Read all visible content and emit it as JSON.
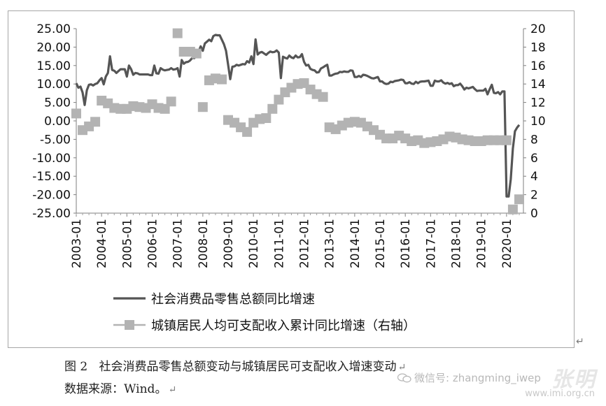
{
  "chart_data": {
    "type": "line",
    "title": "",
    "xlabel": "",
    "ylabel_left": "",
    "ylabel_right": "",
    "categories": [
      "2003-01",
      "2004-01",
      "2005-01",
      "2006-01",
      "2007-01",
      "2008-01",
      "2009-01",
      "2010-01",
      "2011-01",
      "2012-01",
      "2013-01",
      "2014-01",
      "2015-01",
      "2016-01",
      "2017-01",
      "2018-01",
      "2019-01",
      "2020-01"
    ],
    "x_range": [
      2003.0,
      2020.667
    ],
    "ylim_left": [
      -25,
      25
    ],
    "yticks_left": [
      "25.00",
      "20.00",
      "15.00",
      "10.00",
      "5.00",
      "0.00",
      "-5.00",
      "-10.00",
      "-15.00",
      "-20.00",
      "-25.00"
    ],
    "ylim_right": [
      0,
      20
    ],
    "yticks_right": [
      "20",
      "18",
      "16",
      "14",
      "12",
      "10",
      "8",
      "6",
      "4",
      "2",
      "0"
    ],
    "grid": false,
    "legend_position": "bottom",
    "series": [
      {
        "name": "社会消费品零售总额同比增速",
        "axis": "left",
        "style": "line",
        "color": "#555555",
        "points": [
          [
            2003.0,
            10.2
          ],
          [
            2003.083,
            9.0
          ],
          [
            2003.167,
            9.3
          ],
          [
            2003.25,
            7.7
          ],
          [
            2003.333,
            4.3
          ],
          [
            2003.417,
            8.3
          ],
          [
            2003.5,
            9.8
          ],
          [
            2003.583,
            9.9
          ],
          [
            2003.667,
            9.6
          ],
          [
            2003.75,
            10.0
          ],
          [
            2003.833,
            10.2
          ],
          [
            2003.917,
            11.0
          ],
          [
            2004.0,
            11.6
          ],
          [
            2004.083,
            9.9
          ],
          [
            2004.167,
            12.0
          ],
          [
            2004.25,
            13.0
          ],
          [
            2004.333,
            17.5
          ],
          [
            2004.417,
            13.8
          ],
          [
            2004.5,
            13.6
          ],
          [
            2004.583,
            13.0
          ],
          [
            2004.667,
            13.5
          ],
          [
            2004.75,
            14.0
          ],
          [
            2004.833,
            14.0
          ],
          [
            2004.917,
            14.0
          ],
          [
            2005.0,
            12.0
          ],
          [
            2005.083,
            15.0
          ],
          [
            2005.167,
            14.0
          ],
          [
            2005.25,
            12.5
          ],
          [
            2005.333,
            13.0
          ],
          [
            2005.417,
            12.9
          ],
          [
            2005.5,
            12.6
          ],
          [
            2005.583,
            12.6
          ],
          [
            2005.667,
            12.6
          ],
          [
            2005.75,
            12.6
          ],
          [
            2005.833,
            12.6
          ],
          [
            2005.917,
            12.4
          ],
          [
            2006.0,
            12.4
          ],
          [
            2006.083,
            15.0
          ],
          [
            2006.167,
            12.9
          ],
          [
            2006.25,
            12.8
          ],
          [
            2006.333,
            14.3
          ],
          [
            2006.417,
            13.9
          ],
          [
            2006.5,
            13.7
          ],
          [
            2006.583,
            13.8
          ],
          [
            2006.667,
            13.9
          ],
          [
            2006.75,
            14.3
          ],
          [
            2006.833,
            13.9
          ],
          [
            2006.917,
            14.0
          ],
          [
            2007.0,
            14.3
          ],
          [
            2007.083,
            12.0
          ],
          [
            2007.167,
            16.5
          ],
          [
            2007.25,
            15.5
          ],
          [
            2007.333,
            15.9
          ],
          [
            2007.417,
            16.0
          ],
          [
            2007.5,
            16.4
          ],
          [
            2007.583,
            17.1
          ],
          [
            2007.667,
            17.0
          ],
          [
            2007.75,
            18.1
          ],
          [
            2007.833,
            18.8
          ],
          [
            2007.917,
            20.2
          ],
          [
            2008.0,
            19.0
          ],
          [
            2008.083,
            21.0
          ],
          [
            2008.167,
            21.5
          ],
          [
            2008.25,
            22.0
          ],
          [
            2008.333,
            21.6
          ],
          [
            2008.417,
            23.0
          ],
          [
            2008.5,
            23.3
          ],
          [
            2008.583,
            23.2
          ],
          [
            2008.667,
            23.2
          ],
          [
            2008.75,
            22.0
          ],
          [
            2008.833,
            20.8
          ],
          [
            2008.917,
            19.0
          ],
          [
            2009.0,
            15.2
          ],
          [
            2009.083,
            11.3
          ],
          [
            2009.167,
            14.7
          ],
          [
            2009.25,
            14.8
          ],
          [
            2009.333,
            15.2
          ],
          [
            2009.417,
            15.0
          ],
          [
            2009.5,
            15.2
          ],
          [
            2009.583,
            15.4
          ],
          [
            2009.667,
            15.3
          ],
          [
            2009.75,
            16.2
          ],
          [
            2009.833,
            15.8
          ],
          [
            2009.917,
            17.5
          ],
          [
            2010.0,
            15.4
          ],
          [
            2010.083,
            22.1
          ],
          [
            2010.167,
            18.0
          ],
          [
            2010.25,
            18.5
          ],
          [
            2010.333,
            18.7
          ],
          [
            2010.417,
            18.3
          ],
          [
            2010.5,
            17.9
          ],
          [
            2010.583,
            18.4
          ],
          [
            2010.667,
            18.8
          ],
          [
            2010.75,
            18.6
          ],
          [
            2010.833,
            18.7
          ],
          [
            2010.917,
            19.1
          ],
          [
            2011.0,
            18.5
          ],
          [
            2011.083,
            11.6
          ],
          [
            2011.167,
            17.4
          ],
          [
            2011.25,
            17.1
          ],
          [
            2011.333,
            16.9
          ],
          [
            2011.417,
            17.7
          ],
          [
            2011.5,
            17.2
          ],
          [
            2011.583,
            17.0
          ],
          [
            2011.667,
            17.7
          ],
          [
            2011.75,
            17.2
          ],
          [
            2011.833,
            17.3
          ],
          [
            2011.917,
            18.1
          ],
          [
            2012.0,
            16.0
          ],
          [
            2012.083,
            15.0
          ],
          [
            2012.167,
            15.2
          ],
          [
            2012.25,
            14.1
          ],
          [
            2012.333,
            13.8
          ],
          [
            2012.417,
            13.7
          ],
          [
            2012.5,
            13.1
          ],
          [
            2012.583,
            13.2
          ],
          [
            2012.667,
            14.2
          ],
          [
            2012.75,
            14.5
          ],
          [
            2012.833,
            14.9
          ],
          [
            2012.917,
            15.2
          ],
          [
            2013.0,
            12.3
          ],
          [
            2013.083,
            12.3
          ],
          [
            2013.167,
            12.6
          ],
          [
            2013.25,
            12.8
          ],
          [
            2013.333,
            12.9
          ],
          [
            2013.417,
            13.3
          ],
          [
            2013.5,
            13.2
          ],
          [
            2013.583,
            13.4
          ],
          [
            2013.667,
            13.3
          ],
          [
            2013.75,
            13.3
          ],
          [
            2013.833,
            13.7
          ],
          [
            2013.917,
            13.6
          ],
          [
            2014.0,
            11.9
          ],
          [
            2014.083,
            11.9
          ],
          [
            2014.167,
            12.2
          ],
          [
            2014.25,
            11.9
          ],
          [
            2014.333,
            12.5
          ],
          [
            2014.417,
            12.4
          ],
          [
            2014.5,
            12.2
          ],
          [
            2014.583,
            11.9
          ],
          [
            2014.667,
            11.6
          ],
          [
            2014.75,
            11.5
          ],
          [
            2014.833,
            11.7
          ],
          [
            2014.917,
            11.9
          ],
          [
            2015.0,
            10.7
          ],
          [
            2015.083,
            10.7
          ],
          [
            2015.167,
            10.2
          ],
          [
            2015.25,
            10.0
          ],
          [
            2015.333,
            10.1
          ],
          [
            2015.417,
            10.6
          ],
          [
            2015.5,
            10.5
          ],
          [
            2015.583,
            10.8
          ],
          [
            2015.667,
            10.9
          ],
          [
            2015.75,
            11.0
          ],
          [
            2015.833,
            11.2
          ],
          [
            2015.917,
            11.1
          ],
          [
            2016.0,
            10.2
          ],
          [
            2016.083,
            10.2
          ],
          [
            2016.167,
            10.5
          ],
          [
            2016.25,
            10.1
          ],
          [
            2016.333,
            10.0
          ],
          [
            2016.417,
            10.6
          ],
          [
            2016.5,
            10.2
          ],
          [
            2016.583,
            10.6
          ],
          [
            2016.667,
            10.7
          ],
          [
            2016.75,
            10.7
          ],
          [
            2016.833,
            10.8
          ],
          [
            2016.917,
            10.9
          ],
          [
            2017.0,
            9.5
          ],
          [
            2017.083,
            9.5
          ],
          [
            2017.167,
            10.9
          ],
          [
            2017.25,
            10.7
          ],
          [
            2017.333,
            10.7
          ],
          [
            2017.417,
            11.0
          ],
          [
            2017.5,
            10.4
          ],
          [
            2017.583,
            10.1
          ],
          [
            2017.667,
            10.3
          ],
          [
            2017.75,
            10.0
          ],
          [
            2017.833,
            10.2
          ],
          [
            2017.917,
            9.4
          ],
          [
            2018.0,
            9.7
          ],
          [
            2018.083,
            9.7
          ],
          [
            2018.167,
            10.1
          ],
          [
            2018.25,
            9.4
          ],
          [
            2018.333,
            8.5
          ],
          [
            2018.417,
            9.0
          ],
          [
            2018.5,
            8.8
          ],
          [
            2018.583,
            9.0
          ],
          [
            2018.667,
            9.2
          ],
          [
            2018.75,
            8.6
          ],
          [
            2018.833,
            8.1
          ],
          [
            2018.917,
            8.2
          ],
          [
            2019.0,
            8.2
          ],
          [
            2019.083,
            8.2
          ],
          [
            2019.167,
            8.7
          ],
          [
            2019.25,
            7.2
          ],
          [
            2019.333,
            8.6
          ],
          [
            2019.417,
            9.8
          ],
          [
            2019.5,
            7.6
          ],
          [
            2019.583,
            7.5
          ],
          [
            2019.667,
            7.8
          ],
          [
            2019.75,
            7.2
          ],
          [
            2019.833,
            8.0
          ],
          [
            2019.917,
            8.0
          ],
          [
            2020.0,
            -20.5
          ],
          [
            2020.083,
            -20.5
          ],
          [
            2020.167,
            -15.8
          ],
          [
            2020.25,
            -7.5
          ],
          [
            2020.333,
            -2.8
          ],
          [
            2020.417,
            -1.8
          ],
          [
            2020.5,
            -1.1
          ]
        ]
      },
      {
        "name": "城镇居民人均可支配收入累计同比增速（右轴）",
        "axis": "right",
        "style": "square-markers",
        "color": "#b3b3b3",
        "points": [
          [
            2003.0,
            10.8
          ],
          [
            2003.25,
            9.0
          ],
          [
            2003.5,
            9.4
          ],
          [
            2003.75,
            9.9
          ],
          [
            2004.0,
            12.2
          ],
          [
            2004.25,
            11.9
          ],
          [
            2004.5,
            11.4
          ],
          [
            2004.75,
            11.3
          ],
          [
            2005.0,
            11.3
          ],
          [
            2005.25,
            11.6
          ],
          [
            2005.5,
            11.5
          ],
          [
            2005.75,
            11.4
          ],
          [
            2006.0,
            11.8
          ],
          [
            2006.25,
            11.4
          ],
          [
            2006.5,
            11.3
          ],
          [
            2006.75,
            12.1
          ],
          [
            2007.0,
            19.5
          ],
          [
            2007.25,
            17.5
          ],
          [
            2007.5,
            17.5
          ],
          [
            2007.75,
            17.3
          ],
          [
            2008.0,
            11.5
          ],
          [
            2008.25,
            14.4
          ],
          [
            2008.5,
            14.6
          ],
          [
            2008.75,
            14.5
          ],
          [
            2009.0,
            10.1
          ],
          [
            2009.25,
            9.8
          ],
          [
            2009.5,
            9.3
          ],
          [
            2009.75,
            8.8
          ],
          [
            2010.0,
            9.8
          ],
          [
            2010.25,
            10.2
          ],
          [
            2010.5,
            10.3
          ],
          [
            2010.75,
            11.3
          ],
          [
            2011.0,
            12.3
          ],
          [
            2011.25,
            13.1
          ],
          [
            2011.5,
            13.6
          ],
          [
            2011.75,
            14.0
          ],
          [
            2012.0,
            14.1
          ],
          [
            2012.25,
            13.4
          ],
          [
            2012.5,
            12.9
          ],
          [
            2012.75,
            12.6
          ],
          [
            2013.0,
            9.3
          ],
          [
            2013.25,
            9.1
          ],
          [
            2013.5,
            9.5
          ],
          [
            2013.75,
            9.8
          ],
          [
            2014.0,
            9.9
          ],
          [
            2014.25,
            9.8
          ],
          [
            2014.5,
            9.4
          ],
          [
            2014.75,
            9.0
          ],
          [
            2015.0,
            8.5
          ],
          [
            2015.25,
            8.1
          ],
          [
            2015.5,
            8.1
          ],
          [
            2015.75,
            8.4
          ],
          [
            2016.0,
            8.1
          ],
          [
            2016.25,
            7.8
          ],
          [
            2016.5,
            7.9
          ],
          [
            2016.75,
            7.6
          ],
          [
            2017.0,
            7.7
          ],
          [
            2017.25,
            7.8
          ],
          [
            2017.5,
            8.0
          ],
          [
            2017.75,
            8.3
          ],
          [
            2018.0,
            8.2
          ],
          [
            2018.25,
            8.0
          ],
          [
            2018.5,
            7.9
          ],
          [
            2018.75,
            7.8
          ],
          [
            2019.0,
            7.8
          ],
          [
            2019.25,
            7.9
          ],
          [
            2019.5,
            7.9
          ],
          [
            2019.75,
            7.9
          ],
          [
            2020.0,
            7.9
          ],
          [
            2020.25,
            0.4
          ],
          [
            2020.5,
            1.5
          ]
        ]
      }
    ]
  },
  "caption": {
    "figure_label": "图 2",
    "text": "社会消费品零售总额变动与城镇居民可支配收入增速变动",
    "return_mark": "↵"
  },
  "source": {
    "text": "数据来源：Wind。",
    "return_mark": "↵"
  },
  "frame_return_mark": "↵",
  "watermark": {
    "account_line": "微信号: zhangming_iwep",
    "site_url": "www.imi.org.cn",
    "brand_text": "张明"
  }
}
